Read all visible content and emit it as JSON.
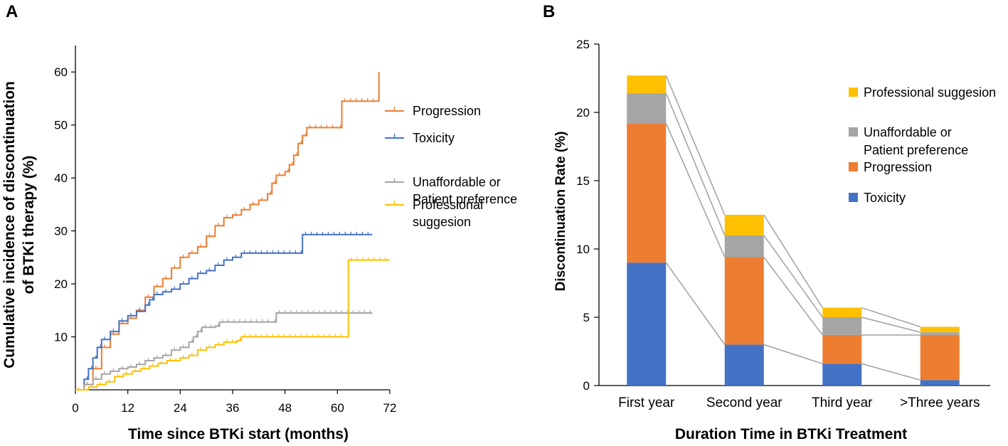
{
  "chart_data": [
    {
      "panel": "A",
      "type": "line",
      "subtype": "step (cumulative incidence)",
      "xlabel": "Time since BTKi start (months)",
      "ylabel_lines": [
        "Cumulative incidence of discontinuation",
        "of BTKi therapy (%)"
      ],
      "xlim": [
        0,
        72
      ],
      "ylim": [
        0,
        65
      ],
      "xticks": [
        0,
        12,
        24,
        36,
        48,
        60,
        72
      ],
      "yticks": [
        10,
        20,
        30,
        40,
        50,
        60
      ],
      "legend_position": "right",
      "series": [
        {
          "name": "Progression",
          "legend_lines": [
            "Progression"
          ],
          "color": "#ED7D31",
          "points": [
            [
              0,
              0
            ],
            [
              2,
              1
            ],
            [
              4,
              4
            ],
            [
              6,
              8
            ],
            [
              8,
              10.5
            ],
            [
              10,
              12.5
            ],
            [
              12,
              13.5
            ],
            [
              14,
              15
            ],
            [
              16,
              17.5
            ],
            [
              18,
              19.5
            ],
            [
              20,
              21
            ],
            [
              22,
              23
            ],
            [
              24,
              25
            ],
            [
              26,
              25.8
            ],
            [
              28,
              27
            ],
            [
              30,
              29
            ],
            [
              32,
              31
            ],
            [
              34,
              32.5
            ],
            [
              36,
              33
            ],
            [
              38,
              34
            ],
            [
              40,
              35
            ],
            [
              42,
              35.8
            ],
            [
              44,
              37
            ],
            [
              45,
              39
            ],
            [
              46,
              40.5
            ],
            [
              48,
              41.2
            ],
            [
              49,
              42.5
            ],
            [
              50,
              44.3
            ],
            [
              51,
              46.5
            ],
            [
              52,
              48
            ],
            [
              53,
              49.5
            ],
            [
              60,
              49.5
            ],
            [
              61,
              54.5
            ],
            [
              69,
              54.5
            ],
            [
              69.5,
              60
            ]
          ]
        },
        {
          "name": "Toxicity",
          "legend_lines": [
            "Toxicity"
          ],
          "color": "#4472C4",
          "points": [
            [
              0,
              0
            ],
            [
              2,
              2
            ],
            [
              3,
              4
            ],
            [
              4,
              6
            ],
            [
              5,
              8
            ],
            [
              6,
              9.5
            ],
            [
              8,
              11
            ],
            [
              10,
              13
            ],
            [
              12,
              14
            ],
            [
              14,
              14.8
            ],
            [
              16,
              16
            ],
            [
              17,
              17
            ],
            [
              18,
              18
            ],
            [
              20,
              18.5
            ],
            [
              22,
              19
            ],
            [
              24,
              20
            ],
            [
              26,
              21
            ],
            [
              28,
              22
            ],
            [
              30,
              22.5
            ],
            [
              32,
              23.5
            ],
            [
              34,
              24.5
            ],
            [
              36,
              25
            ],
            [
              38,
              25.8
            ],
            [
              51,
              25.8
            ],
            [
              52,
              29.3
            ],
            [
              68,
              29.3
            ]
          ]
        },
        {
          "name": "Unaffordable or Patient preference",
          "legend_lines": [
            "Unaffordable or",
            "Patient preference"
          ],
          "color": "#A5A5A5",
          "points": [
            [
              0,
              0
            ],
            [
              2,
              1
            ],
            [
              4,
              2
            ],
            [
              6,
              3
            ],
            [
              8,
              3.5
            ],
            [
              10,
              4
            ],
            [
              12,
              4.3
            ],
            [
              14,
              4.8
            ],
            [
              16,
              5.5
            ],
            [
              18,
              6
            ],
            [
              20,
              6.5
            ],
            [
              22,
              7.5
            ],
            [
              24,
              8
            ],
            [
              26,
              9
            ],
            [
              27,
              10
            ],
            [
              28,
              11
            ],
            [
              29,
              11.8
            ],
            [
              32,
              12
            ],
            [
              33,
              12.8
            ],
            [
              45,
              12.8
            ],
            [
              46,
              14.5
            ],
            [
              68,
              14.5
            ]
          ]
        },
        {
          "name": "Professional suggesion",
          "legend_lines": [
            "Professional",
            "suggesion"
          ],
          "color": "#FFC000",
          "points": [
            [
              0,
              0
            ],
            [
              3,
              0.5
            ],
            [
              5,
              1
            ],
            [
              7,
              1.5
            ],
            [
              9,
              2.5
            ],
            [
              11,
              3
            ],
            [
              13,
              3.5
            ],
            [
              15,
              4
            ],
            [
              17,
              4.5
            ],
            [
              19,
              5
            ],
            [
              21,
              5.5
            ],
            [
              24,
              6
            ],
            [
              26,
              6.5
            ],
            [
              28,
              7.5
            ],
            [
              30,
              8
            ],
            [
              32,
              8.5
            ],
            [
              34,
              9
            ],
            [
              37,
              9.3
            ],
            [
              38,
              10
            ],
            [
              62,
              10
            ],
            [
              62.5,
              24.5
            ],
            [
              72,
              24.5
            ]
          ]
        }
      ]
    },
    {
      "panel": "B",
      "type": "bar",
      "subtype": "stacked",
      "xlabel": "Duration Time in BTKi Treatment",
      "ylabel": "Discontinuation Rate (%)",
      "ylim": [
        0,
        25
      ],
      "yticks": [
        0,
        5,
        10,
        15,
        20,
        25
      ],
      "categories": [
        "First year",
        "Second year",
        "Third year",
        ">Three years"
      ],
      "legend_position": "top-right",
      "series": [
        {
          "name": "Toxicity",
          "legend_lines": [
            "Toxicity"
          ],
          "color": "#4472C4",
          "values": [
            9.0,
            3.0,
            1.6,
            0.4
          ]
        },
        {
          "name": "Progression",
          "legend_lines": [
            "Progression"
          ],
          "color": "#ED7D31",
          "values": [
            10.2,
            6.4,
            2.1,
            3.3
          ]
        },
        {
          "name": "Unaffordable or Patient preference",
          "legend_lines": [
            "Unaffordable or",
            "Patient preference"
          ],
          "color": "#A5A5A5",
          "values": [
            2.2,
            1.6,
            1.3,
            0.2
          ]
        },
        {
          "name": "Professional suggesion",
          "legend_lines": [
            "Professional suggesion"
          ],
          "color": "#FFC000",
          "values": [
            1.3,
            1.5,
            0.7,
            0.4
          ]
        }
      ],
      "legend_order": [
        "Professional suggesion",
        "Unaffordable or Patient preference",
        "Progression",
        "Toxicity"
      ]
    }
  ]
}
